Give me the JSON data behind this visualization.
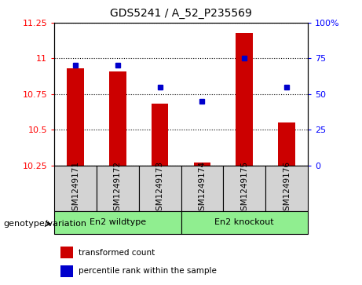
{
  "title": "GDS5241 / A_52_P235569",
  "samples": [
    "GSM1249171",
    "GSM1249172",
    "GSM1249173",
    "GSM1249174",
    "GSM1249175",
    "GSM1249176"
  ],
  "red_values": [
    10.93,
    10.91,
    10.68,
    10.27,
    11.18,
    10.55
  ],
  "blue_percentile": [
    70,
    70,
    55,
    45,
    75,
    55
  ],
  "ylim_left": [
    10.25,
    11.25
  ],
  "ylim_right": [
    0,
    100
  ],
  "yticks_left": [
    10.25,
    10.5,
    10.75,
    11.0,
    11.25
  ],
  "yticks_right": [
    0,
    25,
    50,
    75,
    100
  ],
  "ytick_labels_left": [
    "10.25",
    "10.5",
    "10.75",
    "11",
    "11.25"
  ],
  "ytick_labels_right": [
    "0",
    "25",
    "50",
    "75",
    "100%"
  ],
  "bar_color": "#CC0000",
  "dot_color": "#0000CC",
  "bar_bottom": 10.25,
  "legend_red": "transformed count",
  "legend_blue": "percentile rank within the sample",
  "genotype_label": "genotype/variation",
  "group_labels": [
    "En2 wildtype",
    "En2 knockout"
  ],
  "group_color": "#90EE90",
  "bar_width": 0.4
}
